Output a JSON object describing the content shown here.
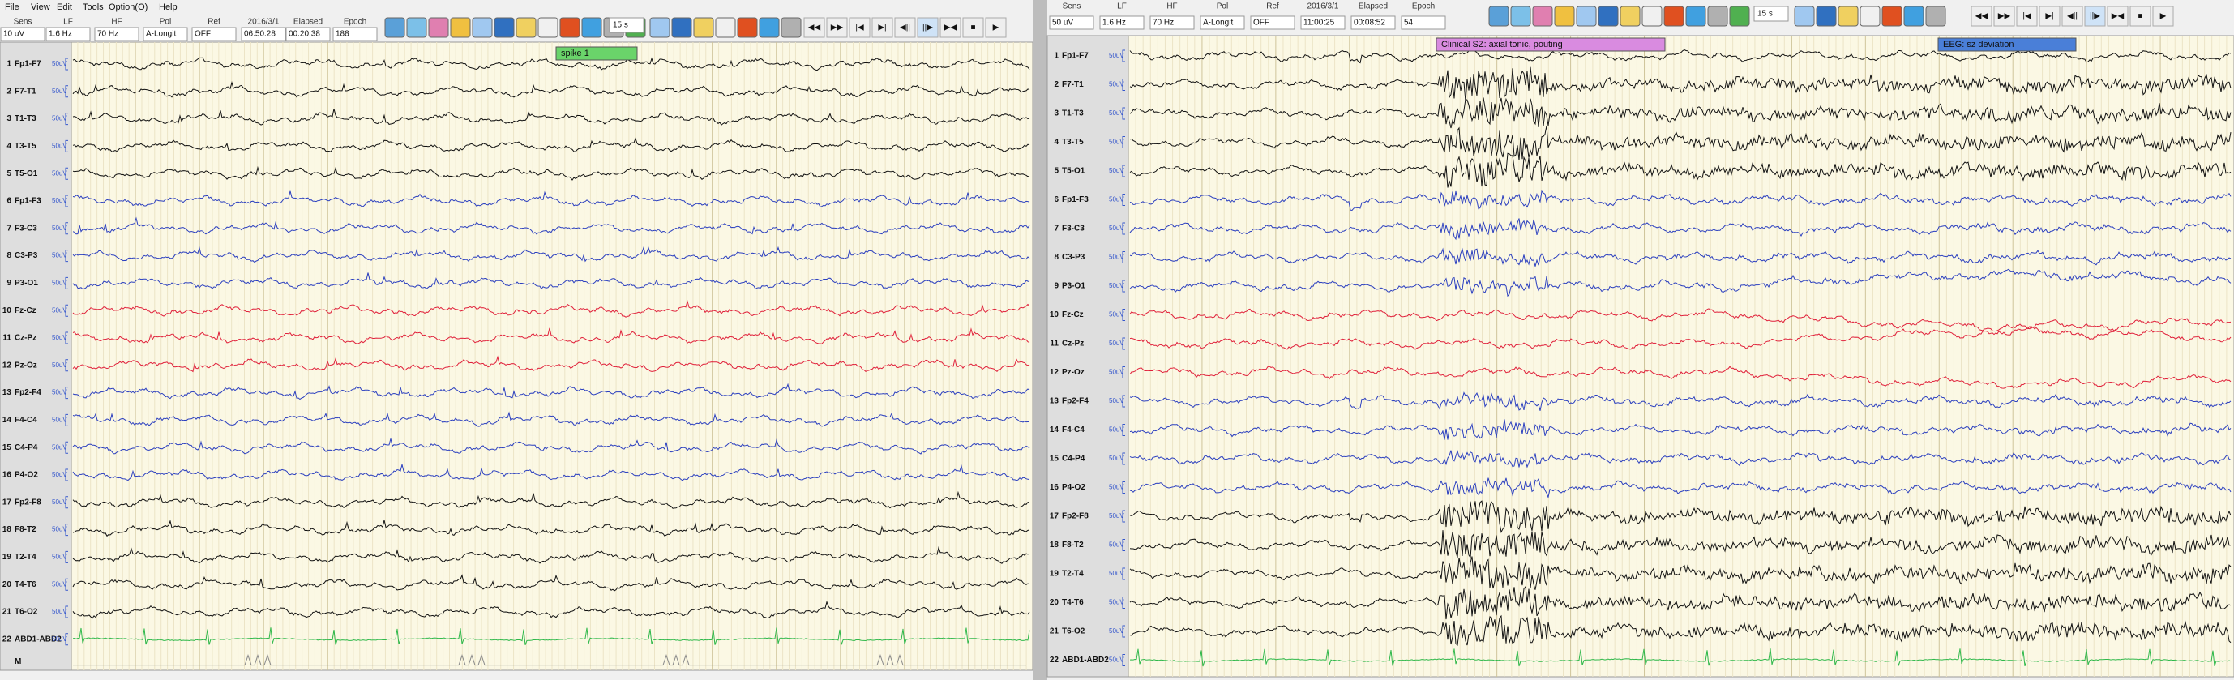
{
  "left_panel": {
    "menu": [
      "File",
      "View",
      "Edit",
      "Tools",
      "Option(O)",
      "Help"
    ],
    "toolbar": {
      "labels": [
        "Sens",
        "LF",
        "HF",
        "Pol",
        "Ref",
        "2016/3/1",
        "Elapsed",
        "Epoch"
      ],
      "values": [
        "10 uV",
        "1.6 Hz",
        "70 Hz",
        "A-Longit",
        "OFF",
        "06:50:28",
        "00:20:38",
        "188"
      ],
      "speed": "15 s"
    },
    "channels": [
      {
        "no": "1",
        "name": "Fp1-F7"
      },
      {
        "no": "2",
        "name": "F7-T1"
      },
      {
        "no": "3",
        "name": "T1-T3"
      },
      {
        "no": "4",
        "name": "T3-T5"
      },
      {
        "no": "5",
        "name": "T5-O1"
      },
      {
        "no": "6",
        "name": "Fp1-F3"
      },
      {
        "no": "7",
        "name": "F3-C3"
      },
      {
        "no": "8",
        "name": "C3-P3"
      },
      {
        "no": "9",
        "name": "P3-O1"
      },
      {
        "no": "10",
        "name": "Fz-Cz"
      },
      {
        "no": "11",
        "name": "Cz-Pz"
      },
      {
        "no": "12",
        "name": "Pz-Oz"
      },
      {
        "no": "13",
        "name": "Fp2-F4"
      },
      {
        "no": "14",
        "name": "F4-C4"
      },
      {
        "no": "15",
        "name": "C4-P4"
      },
      {
        "no": "16",
        "name": "P4-O2"
      },
      {
        "no": "17",
        "name": "Fp2-F8"
      },
      {
        "no": "18",
        "name": "F8-T2"
      },
      {
        "no": "19",
        "name": "T2-T4"
      },
      {
        "no": "20",
        "name": "T4-T6"
      },
      {
        "no": "21",
        "name": "T6-O2"
      },
      {
        "no": "22",
        "name": "ABD1-ABD2"
      }
    ],
    "extra_row": "M",
    "scale_label": "50uV",
    "annotations": [
      "spike 1"
    ]
  },
  "right_panel": {
    "toolbar": {
      "labels": [
        "Sens",
        "LF",
        "HF",
        "Pol",
        "Ref",
        "2016/3/1",
        "Elapsed",
        "Epoch"
      ],
      "values": [
        "50 uV",
        "1.6 Hz",
        "70 Hz",
        "A-Longit",
        "OFF",
        "11:00:25",
        "00:08:52",
        "54"
      ],
      "speed": "15 s"
    },
    "channels": [
      {
        "no": "1",
        "name": "Fp1-F7"
      },
      {
        "no": "2",
        "name": "F7-T1"
      },
      {
        "no": "3",
        "name": "T1-T3"
      },
      {
        "no": "4",
        "name": "T3-T5"
      },
      {
        "no": "5",
        "name": "T5-O1"
      },
      {
        "no": "6",
        "name": "Fp1-F3"
      },
      {
        "no": "7",
        "name": "F3-C3"
      },
      {
        "no": "8",
        "name": "C3-P3"
      },
      {
        "no": "9",
        "name": "P3-O1"
      },
      {
        "no": "10",
        "name": "Fz-Cz"
      },
      {
        "no": "11",
        "name": "Cz-Pz"
      },
      {
        "no": "12",
        "name": "Pz-Oz"
      },
      {
        "no": "13",
        "name": "Fp2-F4"
      },
      {
        "no": "14",
        "name": "F4-C4"
      },
      {
        "no": "15",
        "name": "C4-P4"
      },
      {
        "no": "16",
        "name": "P4-O2"
      },
      {
        "no": "17",
        "name": "Fp2-F8"
      },
      {
        "no": "18",
        "name": "F8-T2"
      },
      {
        "no": "19",
        "name": "T2-T4"
      },
      {
        "no": "20",
        "name": "T4-T6"
      },
      {
        "no": "21",
        "name": "T6-O2"
      },
      {
        "no": "22",
        "name": "ABD1-ABD2"
      }
    ],
    "scale_label": "50uV",
    "annotations": [
      "Clinical SZ: axial tonic, pouting",
      "EEG: sz deviation"
    ]
  }
}
